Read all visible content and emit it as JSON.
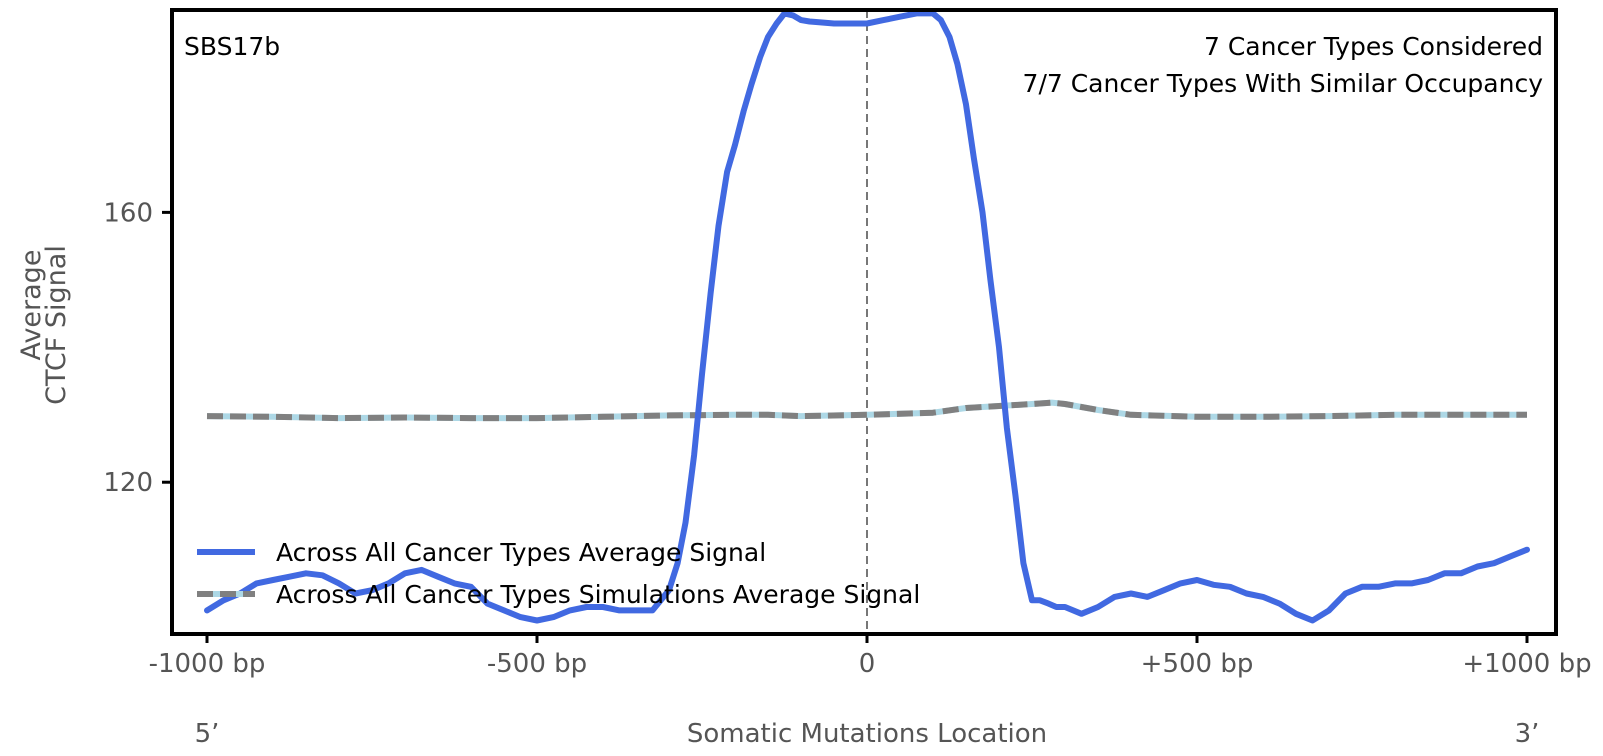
{
  "chart_data": {
    "type": "line",
    "title": "",
    "panel_label": "SBS17b",
    "annotations": [
      "7 Cancer Types Considered",
      "7/7 Cancer Types With Similar Occupancy"
    ],
    "xlabel": "Somatic Mutations Location",
    "ylabel_line1": "Average",
    "ylabel_line2": "CTCF Signal",
    "xlim": [
      -1000,
      1000
    ],
    "ylim": [
      97.5,
      190
    ],
    "x_ticks": [
      {
        "value": -1000,
        "label": "-1000 bp"
      },
      {
        "value": -500,
        "label": "-500 bp"
      },
      {
        "value": 0,
        "label": "0"
      },
      {
        "value": 500,
        "label": "+500 bp"
      },
      {
        "value": 1000,
        "label": "+1000 bp"
      }
    ],
    "y_ticks": [
      {
        "value": 120,
        "label": "120"
      },
      {
        "value": 160,
        "label": "160"
      }
    ],
    "end_labels": {
      "left": "5’",
      "right": "3’"
    },
    "grid": false,
    "legend_position": "bottom-left",
    "series": [
      {
        "name": "Across All Cancer Types Average Signal",
        "style": "solid",
        "color": "#4169e1",
        "x": [
          -1000,
          -975,
          -950,
          -925,
          -900,
          -875,
          -850,
          -825,
          -800,
          -775,
          -750,
          -725,
          -700,
          -675,
          -650,
          -625,
          -600,
          -575,
          -550,
          -525,
          -500,
          -475,
          -450,
          -425,
          -400,
          -375,
          -350,
          -325,
          -300,
          -287,
          -275,
          -262,
          -250,
          -237,
          -225,
          -212,
          -200,
          -187,
          -175,
          -162,
          -150,
          -137,
          -125,
          -112,
          -100,
          -87,
          -75,
          -50,
          -25,
          0,
          25,
          50,
          75,
          100,
          112,
          125,
          137,
          150,
          162,
          175,
          187,
          200,
          212,
          225,
          237,
          250,
          262,
          275,
          287,
          300,
          325,
          350,
          375,
          400,
          425,
          450,
          475,
          500,
          525,
          550,
          575,
          600,
          625,
          650,
          675,
          700,
          725,
          750,
          775,
          800,
          825,
          850,
          875,
          900,
          925,
          950,
          975,
          1000
        ],
        "y": [
          101,
          102.5,
          103.5,
          105,
          105.5,
          106,
          106.5,
          106.2,
          105,
          103.5,
          104,
          105,
          106.5,
          107,
          106,
          105,
          104.5,
          102,
          101,
          100,
          99.5,
          100,
          101,
          101.5,
          101.5,
          101,
          101,
          101,
          104,
          108,
          114,
          124,
          136,
          148,
          158,
          166,
          170,
          175,
          179,
          183,
          186,
          188,
          189.5,
          189.2,
          188.5,
          188.3,
          188.2,
          188,
          188,
          188,
          188.5,
          189,
          189.5,
          189.5,
          188.5,
          186,
          182,
          176,
          168,
          160,
          150,
          140,
          128,
          118,
          108,
          102.5,
          102.5,
          102,
          101.5,
          101.5,
          100.5,
          101.5,
          103,
          103.5,
          103,
          104,
          105,
          105.5,
          104.8,
          104.5,
          103.5,
          103,
          102,
          100.5,
          99.5,
          101,
          103.5,
          104.5,
          104.5,
          105,
          105,
          105.5,
          106.5,
          106.5,
          107.5,
          108,
          109,
          110
        ]
      },
      {
        "name": "Across All Cancer Types Simulations Average Signal",
        "style": "dashed",
        "color": "#808080",
        "under_color": "#add8e6",
        "x": [
          -1000,
          -900,
          -800,
          -700,
          -600,
          -500,
          -400,
          -300,
          -200,
          -150,
          -100,
          0,
          100,
          150,
          200,
          250,
          280,
          300,
          350,
          400,
          500,
          600,
          700,
          800,
          900,
          1000
        ],
        "y": [
          129.8,
          129.7,
          129.5,
          129.6,
          129.5,
          129.5,
          129.7,
          129.9,
          130,
          130,
          129.8,
          130,
          130.3,
          131,
          131.3,
          131.6,
          131.8,
          131.6,
          130.7,
          130,
          129.7,
          129.7,
          129.8,
          130,
          130,
          130
        ]
      }
    ]
  }
}
